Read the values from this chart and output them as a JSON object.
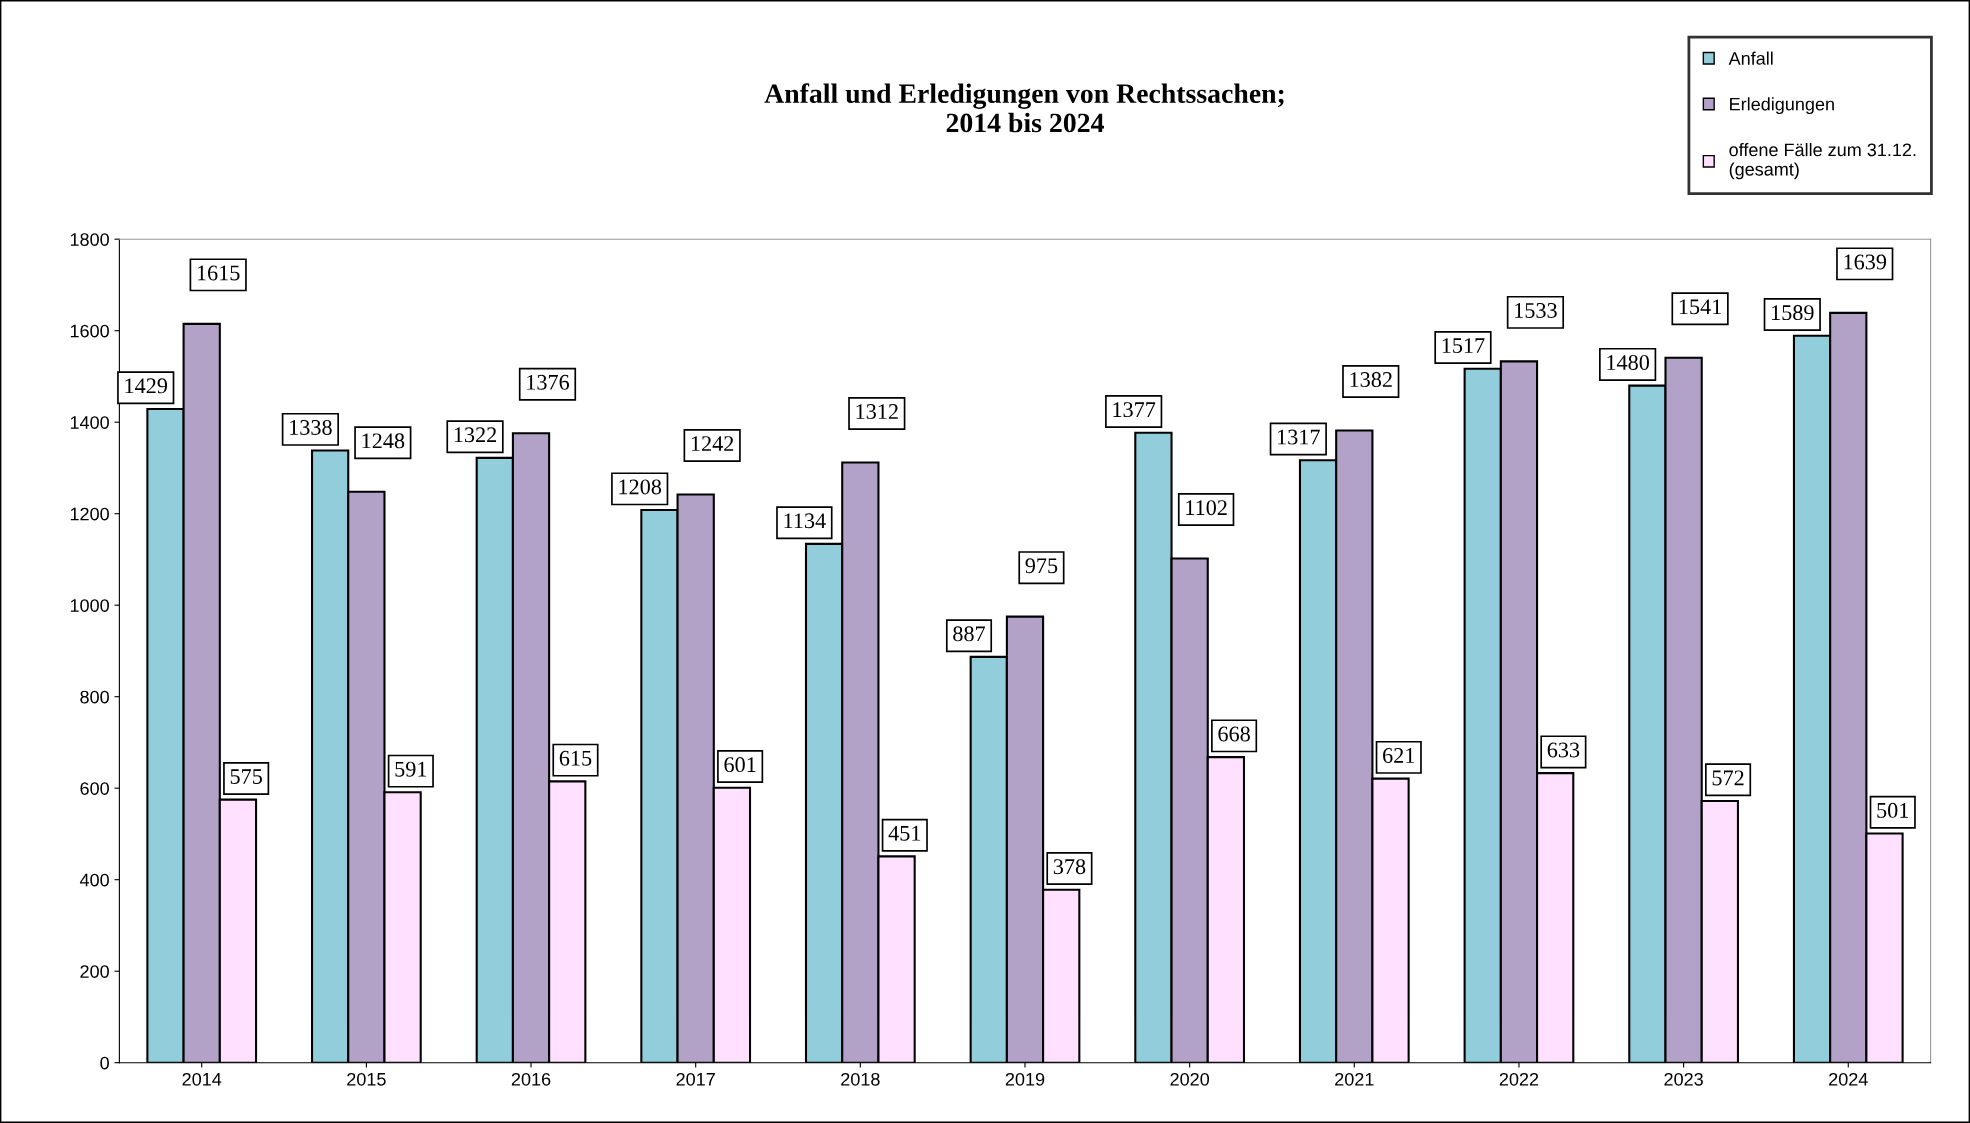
{
  "chart_data": {
    "type": "bar",
    "title": "Anfall und Erledigungen von Rechtssachen;\n2014 bis 2024",
    "categories": [
      "2014",
      "2015",
      "2016",
      "2017",
      "2018",
      "2019",
      "2020",
      "2021",
      "2022",
      "2023",
      "2024"
    ],
    "series": [
      {
        "name": "Anfall",
        "color": "#92cddc",
        "values": [
          1429,
          1338,
          1322,
          1208,
          1134,
          887,
          1377,
          1317,
          1517,
          1480,
          1589
        ]
      },
      {
        "name": "Erledigungen",
        "color": "#b3a2c7",
        "values": [
          1615,
          1248,
          1376,
          1242,
          1312,
          975,
          1102,
          1382,
          1533,
          1541,
          1639
        ]
      },
      {
        "name": "offene Fälle zum 31.12.\n(gesamt)",
        "color": "#ffe0ff",
        "values": [
          575,
          591,
          615,
          601,
          451,
          378,
          668,
          621,
          633,
          572,
          501
        ]
      }
    ],
    "ylim": [
      0,
      1800
    ],
    "yticks": [
      0,
      200,
      400,
      600,
      800,
      1000,
      1200,
      1400,
      1600,
      1800
    ],
    "grid": false,
    "legend": "top right",
    "data_labels": true
  }
}
